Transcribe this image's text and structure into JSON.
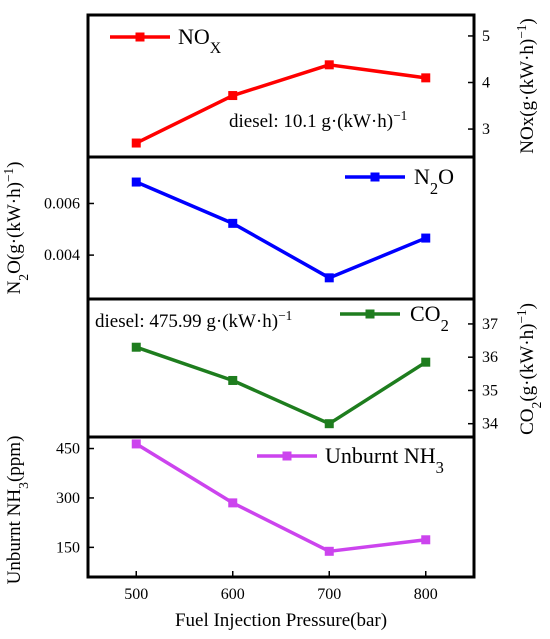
{
  "chart_data": [
    {
      "type": "line",
      "series": [
        {
          "name": "NOX",
          "values": [
            2.7,
            3.72,
            4.38,
            4.1
          ],
          "color": "#ff0000"
        }
      ],
      "x": [
        500,
        600,
        700,
        800
      ],
      "ylabel": "NOx(g·(kW·h)⁻¹)",
      "y_axis_side": "right",
      "yticks": [
        3,
        4,
        5
      ],
      "ylim": [
        2.4,
        5.45
      ],
      "annotation": "diesel: 10.1 g·(kW·h)⁻¹",
      "legend_placement": "top-left"
    },
    {
      "type": "line",
      "series": [
        {
          "name": "N2O",
          "values": [
            0.00683,
            0.00523,
            0.00312,
            0.00466
          ],
          "color": "#0000ff"
        }
      ],
      "x": [
        500,
        600,
        700,
        800
      ],
      "ylabel": "N₂O(g·(kW·h)⁻¹)",
      "y_axis_side": "left",
      "yticks": [
        0.004,
        0.006
      ],
      "ylim": [
        0.0023,
        0.0078
      ],
      "legend_placement": "top-right"
    },
    {
      "type": "line",
      "series": [
        {
          "name": "CO2",
          "values": [
            36.3,
            35.3,
            34.0,
            35.85
          ],
          "color": "#1e7d1e"
        }
      ],
      "x": [
        500,
        600,
        700,
        800
      ],
      "ylabel": "CO₂(g·(kW·h)⁻¹)",
      "y_axis_side": "right",
      "yticks": [
        34,
        35,
        36,
        37
      ],
      "ylim": [
        33.6,
        37.75
      ],
      "annotation": "diesel: 475.99 g·(kW·h)⁻¹",
      "legend_placement": "top-right"
    },
    {
      "type": "line",
      "series": [
        {
          "name": "Unburnt NH3",
          "values": [
            464,
            285,
            138,
            173
          ],
          "color": "#cc44ee"
        }
      ],
      "x": [
        500,
        600,
        700,
        800
      ],
      "ylabel": "Unburnt NH₃(ppm)",
      "y_axis_side": "left",
      "yticks": [
        150,
        300,
        450
      ],
      "ylim": [
        60,
        485
      ],
      "legend_placement": "top-right"
    }
  ],
  "shared_x": {
    "xlabel": "Fuel Injection Pressure(bar)",
    "xticks": [
      500,
      600,
      700,
      800
    ],
    "xlim": [
      450,
      850
    ]
  }
}
